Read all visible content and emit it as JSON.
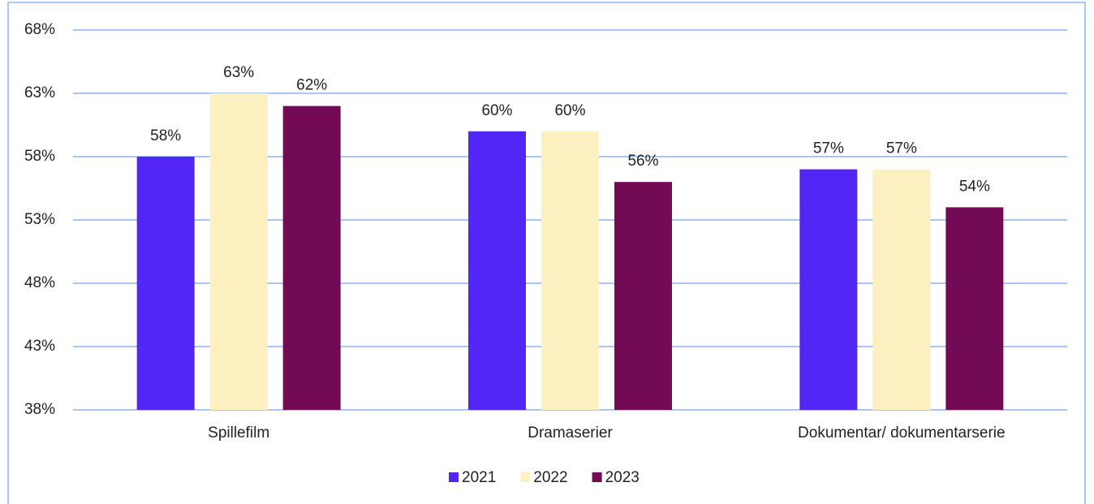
{
  "chart_data": {
    "type": "bar",
    "categories": [
      "Spillefilm",
      "Dramaserier",
      "Dokumentar/ dokumentarserie"
    ],
    "series": [
      {
        "name": "2021",
        "color": "#5227f6",
        "values": [
          58,
          60,
          57
        ],
        "value_labels": [
          "58%",
          "60%",
          "57%"
        ]
      },
      {
        "name": "2022",
        "color": "#fcefc0",
        "values": [
          63,
          60,
          57
        ],
        "value_labels": [
          "63%",
          "60%",
          "57%"
        ]
      },
      {
        "name": "2023",
        "color": "#730a55",
        "values": [
          62,
          56,
          54
        ],
        "value_labels": [
          "62%",
          "56%",
          "54%"
        ]
      }
    ],
    "ylim": [
      38,
      68
    ],
    "yticks": [
      {
        "value": 38,
        "label": "38%"
      },
      {
        "value": 43,
        "label": "43%"
      },
      {
        "value": 48,
        "label": "48%"
      },
      {
        "value": 53,
        "label": "53%"
      },
      {
        "value": 58,
        "label": "58%"
      },
      {
        "value": 63,
        "label": "63%"
      },
      {
        "value": 68,
        "label": "68%"
      }
    ],
    "grid": true,
    "legend": "bottom"
  }
}
